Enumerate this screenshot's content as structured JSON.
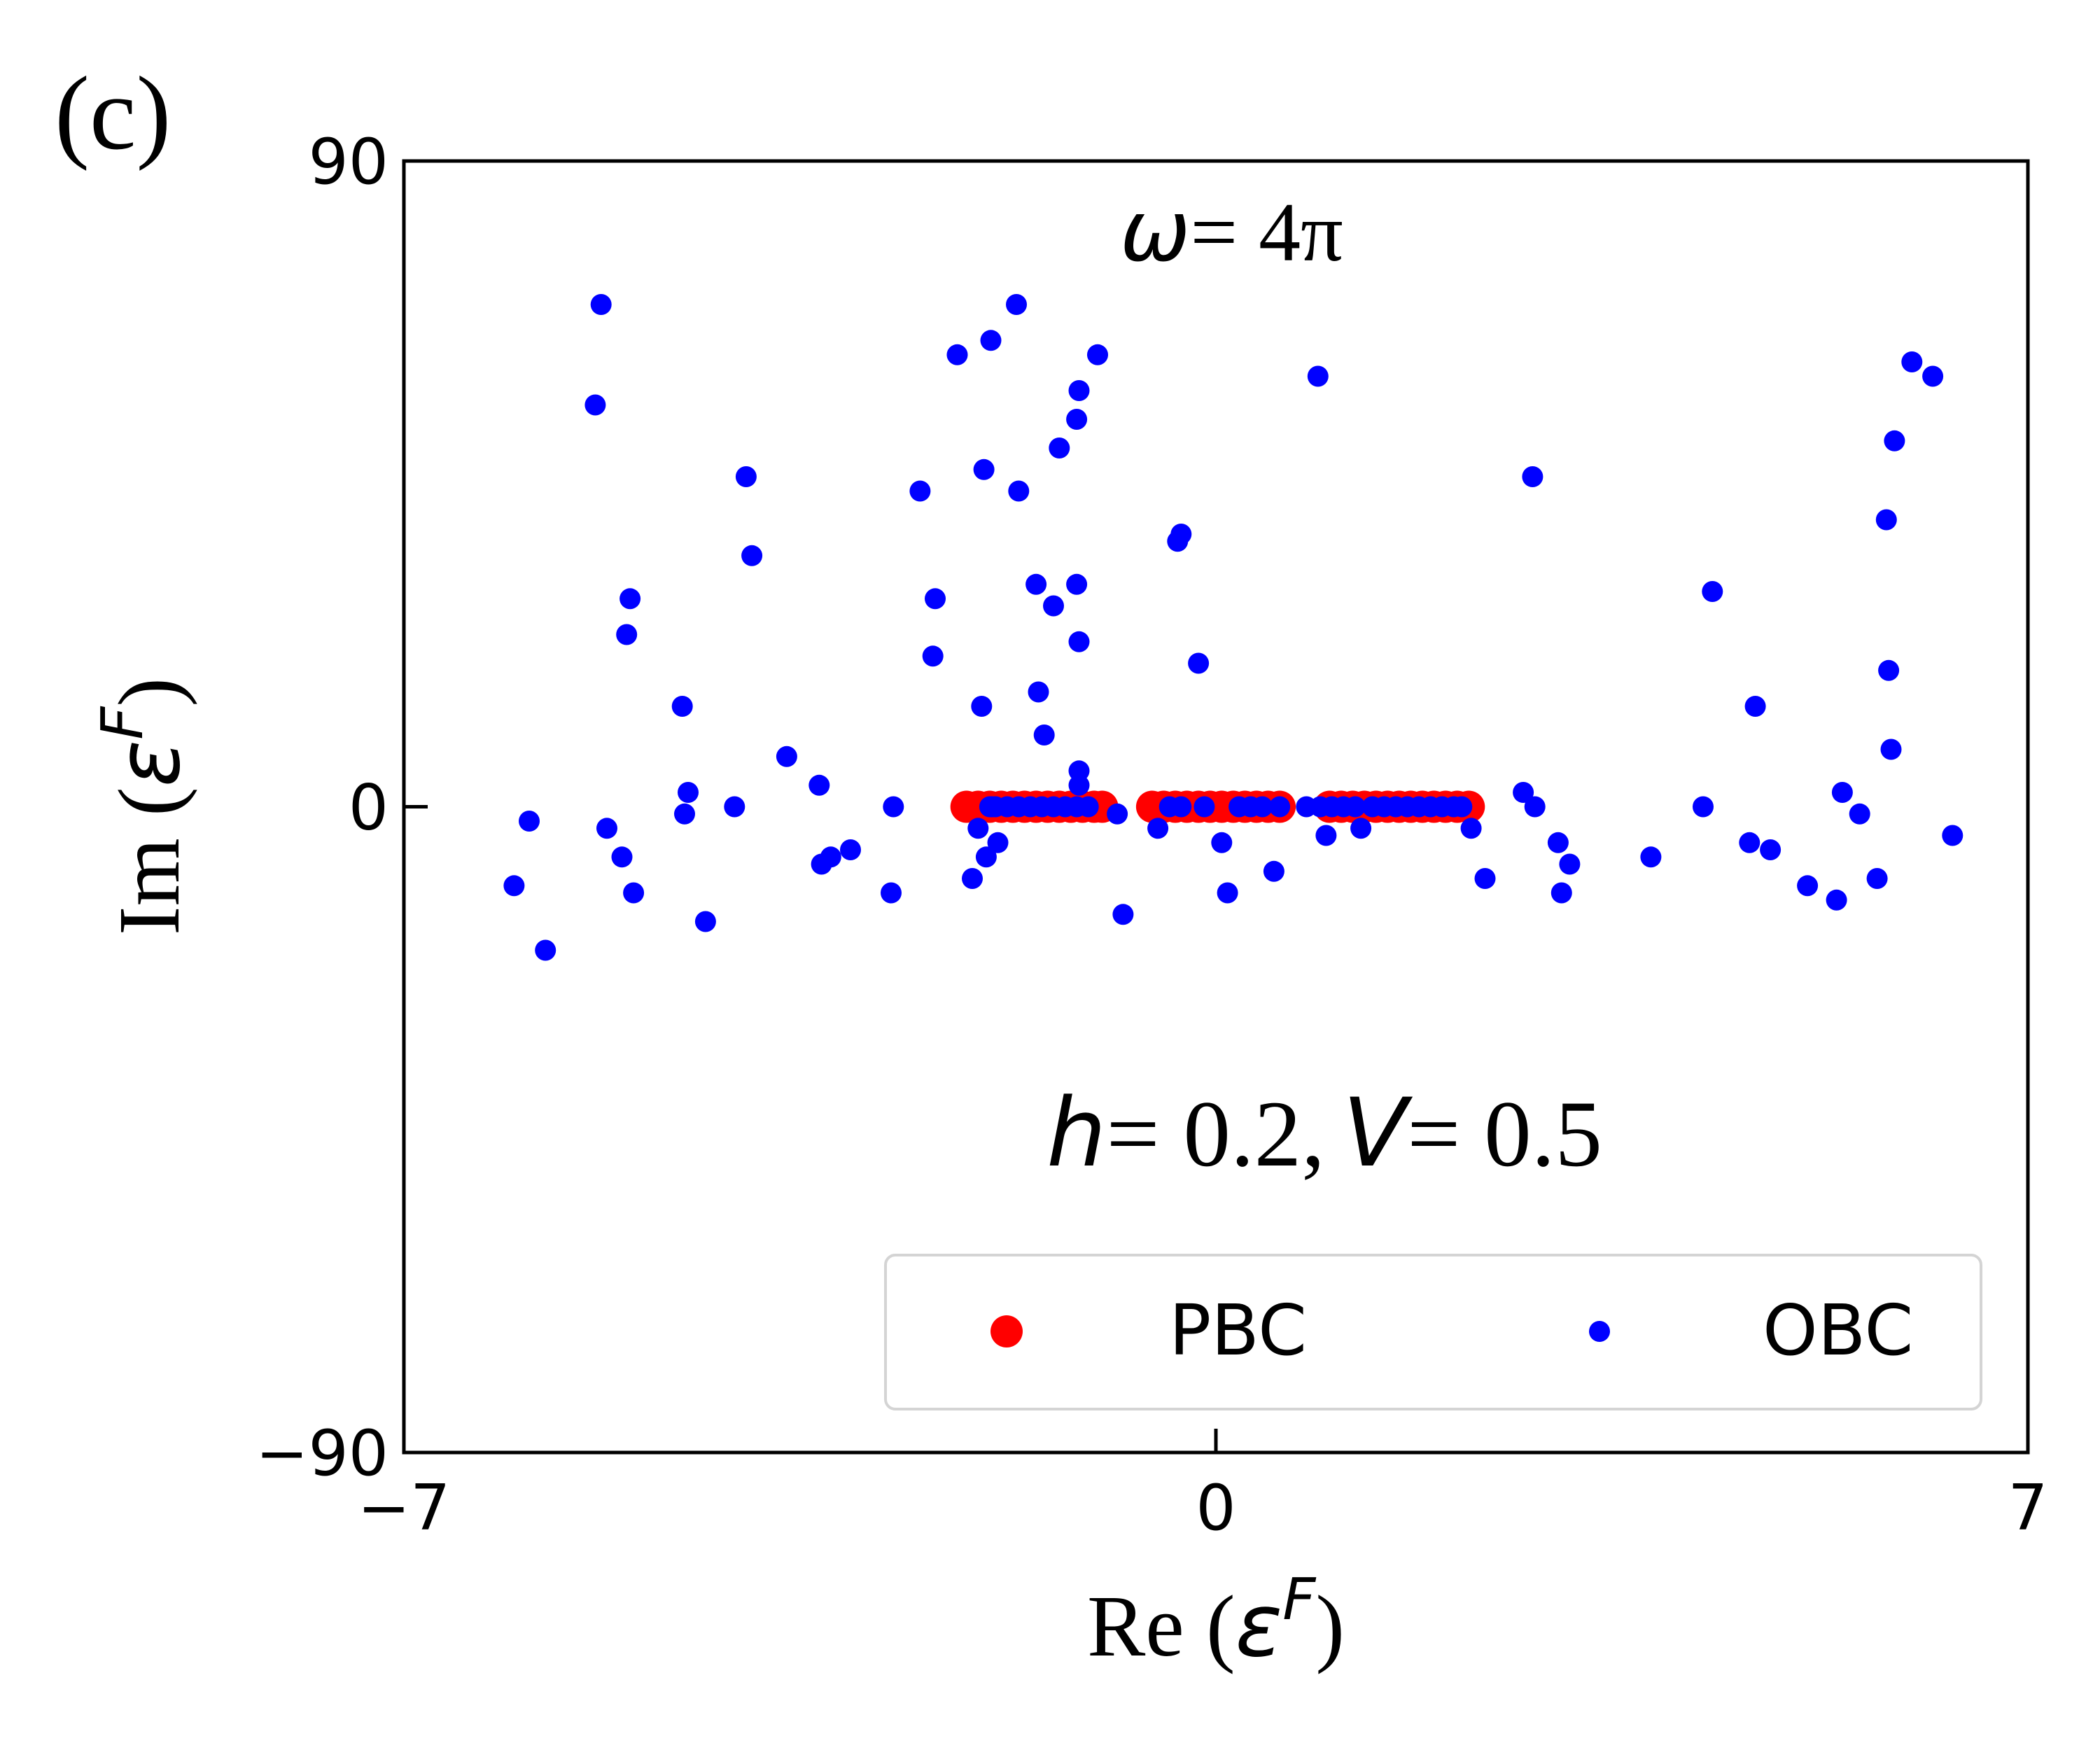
{
  "panel_label": "(c)",
  "chart_data": {
    "type": "scatter",
    "annotations": {
      "omega_symbol": "ω",
      "omega_value": "= 4π",
      "h_symbol": "h",
      "h_value": "= 0.2,",
      "v_symbol": "V",
      "v_value": "= 0.5"
    },
    "xlabel": {
      "prefix": "Re (",
      "symbol": "ε",
      "sup": "F",
      "suffix": ")"
    },
    "ylabel": {
      "prefix": "Im (",
      "symbol": "ε",
      "sup": "F",
      "suffix": ")"
    },
    "xlim": [
      -7,
      7
    ],
    "ylim": [
      -90,
      90
    ],
    "xticks": [
      {
        "value": -7,
        "label": "−7"
      },
      {
        "value": 0,
        "label": "0"
      },
      {
        "value": 7,
        "label": "7"
      }
    ],
    "yticks": [
      {
        "value": 90,
        "label": "90"
      },
      {
        "value": 0,
        "label": "0"
      },
      {
        "value": -90,
        "label": "−90"
      }
    ],
    "grid": false,
    "legend": {
      "placement": "lower-right",
      "columns": 2
    },
    "series": [
      {
        "name": "PBC",
        "color": "#ff0000",
        "marker": "large-dot",
        "points": [
          [
            -2.15,
            0
          ],
          [
            -2.05,
            0
          ],
          [
            -1.95,
            0
          ],
          [
            -1.85,
            0
          ],
          [
            -1.75,
            0
          ],
          [
            -1.65,
            0
          ],
          [
            -1.55,
            0
          ],
          [
            -1.45,
            0
          ],
          [
            -1.35,
            0
          ],
          [
            -1.25,
            0
          ],
          [
            -1.15,
            0
          ],
          [
            -1.05,
            0
          ],
          [
            -0.98,
            0
          ],
          [
            -0.55,
            0
          ],
          [
            -0.45,
            0
          ],
          [
            -0.35,
            0
          ],
          [
            -0.25,
            0
          ],
          [
            -0.15,
            0
          ],
          [
            -0.05,
            0
          ],
          [
            0.05,
            0
          ],
          [
            0.15,
            0
          ],
          [
            0.25,
            0
          ],
          [
            0.35,
            0
          ],
          [
            0.45,
            0
          ],
          [
            0.55,
            0
          ],
          [
            0.98,
            0
          ],
          [
            1.08,
            0
          ],
          [
            1.18,
            0
          ],
          [
            1.28,
            0
          ],
          [
            1.38,
            0
          ],
          [
            1.48,
            0
          ],
          [
            1.58,
            0
          ],
          [
            1.68,
            0
          ],
          [
            1.78,
            0
          ],
          [
            1.88,
            0
          ],
          [
            1.98,
            0
          ],
          [
            2.08,
            0
          ],
          [
            2.18,
            0
          ]
        ]
      },
      {
        "name": "OBC",
        "color": "#0000ff",
        "marker": "small-dot",
        "points": [
          [
            -6.05,
            -11
          ],
          [
            -5.92,
            -2
          ],
          [
            -5.78,
            -20
          ],
          [
            -5.35,
            56
          ],
          [
            -5.3,
            70
          ],
          [
            -5.25,
            -3
          ],
          [
            -5.12,
            -7
          ],
          [
            -5.08,
            24
          ],
          [
            -5.05,
            29
          ],
          [
            -5.02,
            -12
          ],
          [
            -4.6,
            14
          ],
          [
            -4.58,
            -1
          ],
          [
            -4.55,
            2
          ],
          [
            -4.4,
            -16
          ],
          [
            -4.15,
            0
          ],
          [
            -4.05,
            46
          ],
          [
            -4.0,
            35
          ],
          [
            -3.7,
            7
          ],
          [
            -3.42,
            3
          ],
          [
            -3.4,
            -8
          ],
          [
            -3.32,
            -7
          ],
          [
            -3.15,
            -6
          ],
          [
            -2.8,
            -12
          ],
          [
            -2.78,
            0
          ],
          [
            -2.55,
            44
          ],
          [
            -2.42,
            29
          ],
          [
            -2.44,
            21
          ],
          [
            -2.23,
            63
          ],
          [
            -2.1,
            -10
          ],
          [
            -2.05,
            -3
          ],
          [
            -2.02,
            14
          ],
          [
            -2.0,
            47
          ],
          [
            -1.98,
            -7
          ],
          [
            -1.9,
            0
          ],
          [
            -1.88,
            -5
          ],
          [
            -1.95,
            0
          ],
          [
            -1.93,
            0
          ],
          [
            -1.8,
            0
          ],
          [
            -1.7,
            0
          ],
          [
            -1.6,
            0
          ],
          [
            -1.5,
            0
          ],
          [
            -1.4,
            0
          ],
          [
            -1.3,
            0
          ],
          [
            -1.2,
            0
          ],
          [
            -1.1,
            0
          ],
          [
            -1.94,
            65
          ],
          [
            -1.72,
            70
          ],
          [
            -1.7,
            44
          ],
          [
            -1.55,
            31
          ],
          [
            -1.53,
            16
          ],
          [
            -1.48,
            10
          ],
          [
            -1.4,
            28
          ],
          [
            -1.35,
            50
          ],
          [
            -1.2,
            54
          ],
          [
            -1.18,
            58
          ],
          [
            -1.2,
            31
          ],
          [
            -1.18,
            23
          ],
          [
            -1.18,
            3
          ],
          [
            -1.18,
            5
          ],
          [
            -1.02,
            63
          ],
          [
            -0.8,
            -15
          ],
          [
            -0.85,
            -1
          ],
          [
            -0.5,
            -3
          ],
          [
            -0.4,
            0
          ],
          [
            -0.3,
            0
          ],
          [
            -0.33,
            37
          ],
          [
            -0.3,
            38
          ],
          [
            -0.15,
            20
          ],
          [
            -0.1,
            0
          ],
          [
            0.05,
            -5
          ],
          [
            0.1,
            -12
          ],
          [
            0.2,
            0
          ],
          [
            0.3,
            0
          ],
          [
            0.4,
            0
          ],
          [
            0.5,
            -9
          ],
          [
            0.55,
            0
          ],
          [
            0.78,
            0
          ],
          [
            0.9,
            0
          ],
          [
            0.95,
            -4
          ],
          [
            0.88,
            60
          ],
          [
            1.0,
            0
          ],
          [
            1.1,
            0
          ],
          [
            1.2,
            0
          ],
          [
            1.25,
            -3
          ],
          [
            1.35,
            0
          ],
          [
            1.45,
            0
          ],
          [
            1.55,
            0
          ],
          [
            1.65,
            0
          ],
          [
            1.75,
            0
          ],
          [
            1.85,
            0
          ],
          [
            1.95,
            0
          ],
          [
            2.05,
            0
          ],
          [
            2.12,
            0
          ],
          [
            2.2,
            -3
          ],
          [
            2.32,
            -10
          ],
          [
            2.65,
            2
          ],
          [
            2.73,
            46
          ],
          [
            2.75,
            0
          ],
          [
            2.95,
            -5
          ],
          [
            2.98,
            -12
          ],
          [
            3.05,
            -8
          ],
          [
            3.75,
            -7
          ],
          [
            4.2,
            0
          ],
          [
            4.28,
            30
          ],
          [
            4.6,
            -5
          ],
          [
            4.65,
            14
          ],
          [
            4.78,
            -6
          ],
          [
            5.1,
            -11
          ],
          [
            5.35,
            -13
          ],
          [
            5.4,
            2
          ],
          [
            5.55,
            -1
          ],
          [
            5.7,
            -10
          ],
          [
            5.78,
            40
          ],
          [
            5.8,
            19
          ],
          [
            5.82,
            8
          ],
          [
            5.85,
            51
          ],
          [
            6.0,
            62
          ],
          [
            6.18,
            60
          ],
          [
            6.35,
            -4
          ]
        ]
      }
    ]
  }
}
